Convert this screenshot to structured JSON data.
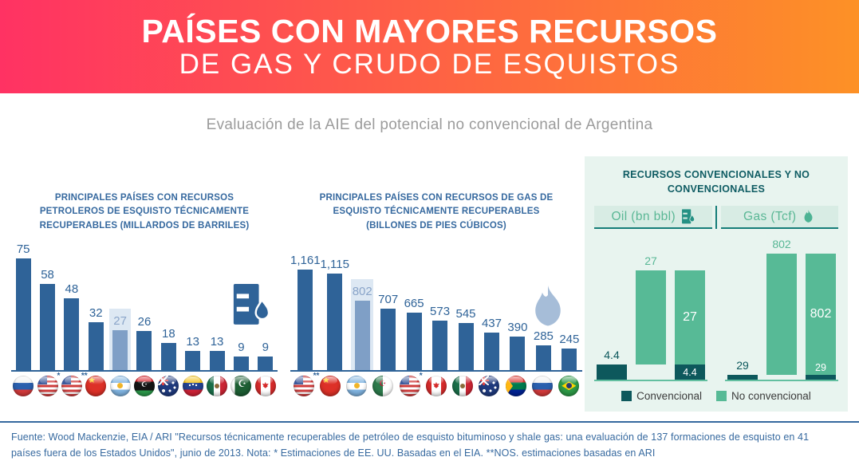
{
  "header": {
    "title_line1": "PAÍSES CON MAYORES RECURSOS",
    "title_line2": "DE GAS Y CRUDO DE ESQUISTOS",
    "subtitle": "Evaluación de la AIE del potencial no convencional de Argentina"
  },
  "colors": {
    "banner_gradient_left": "#ff3263",
    "banner_gradient_right": "#fd9126",
    "bar_blue": "#2f6398",
    "bar_highlight": "#7f9fc6",
    "highlight_band": "#dde8f3",
    "chart_title_blue": "#36699f",
    "panel_background": "#e8f4ef",
    "teal_conventional": "#0d585c",
    "green_unconventional": "#57ba96"
  },
  "chart_data": [
    {
      "id": "oil-countries",
      "type": "bar",
      "title": "PRINCIPALES PAÍSES CON RECURSOS PETROLEROS DE ESQUISTO TÉCNICAMENTE RECUPERABLES (MILLARDOS DE BARRILES)",
      "unit": "millardos de barriles",
      "icon": "oil-barrel-icon",
      "bars": [
        {
          "country": "Rusia",
          "flag": "ru",
          "value": 75
        },
        {
          "country": "Estados Unidos",
          "flag": "us",
          "note": "*",
          "value": 58
        },
        {
          "country": "Estados Unidos",
          "flag": "us",
          "note": "**",
          "value": 48
        },
        {
          "country": "China",
          "flag": "cn",
          "value": 32
        },
        {
          "country": "Argentina",
          "flag": "ar",
          "value": 27,
          "highlight": true
        },
        {
          "country": "Libia",
          "flag": "ly",
          "value": 26
        },
        {
          "country": "Australia",
          "flag": "au",
          "value": 18
        },
        {
          "country": "Venezuela",
          "flag": "ve",
          "value": 13
        },
        {
          "country": "México",
          "flag": "mx",
          "value": 13
        },
        {
          "country": "Pakistán",
          "flag": "pk",
          "value": 9
        },
        {
          "country": "Canadá",
          "flag": "ca",
          "value": 9
        }
      ]
    },
    {
      "id": "gas-countries",
      "type": "bar",
      "title": "PRINCIPALES PAÍSES CON RECURSOS DE GAS DE ESQUISTO TÉCNICAMENTE RECUPERABLES (BILLONES DE PIES CÚBICOS)",
      "unit": "billones de pies cúbicos",
      "icon": "flame-icon",
      "bars": [
        {
          "country": "Estados Unidos",
          "flag": "us",
          "note": "**",
          "value": 1161,
          "label": "1,161"
        },
        {
          "country": "China",
          "flag": "cn",
          "value": 1115,
          "label": "1,115"
        },
        {
          "country": "Argentina",
          "flag": "ar",
          "value": 802,
          "highlight": true
        },
        {
          "country": "Argelia",
          "flag": "dz",
          "value": 707
        },
        {
          "country": "Estados Unidos",
          "flag": "us",
          "note": "*",
          "value": 665
        },
        {
          "country": "Canadá",
          "flag": "ca",
          "value": 573
        },
        {
          "country": "México",
          "flag": "mx",
          "value": 545
        },
        {
          "country": "Australia",
          "flag": "au",
          "value": 437
        },
        {
          "country": "Sudáfrica",
          "flag": "za",
          "value": 390
        },
        {
          "country": "Rusia",
          "flag": "ru",
          "value": 285
        },
        {
          "country": "Brasil",
          "flag": "br",
          "value": 245
        }
      ]
    },
    {
      "id": "conventional-vs-unconventional",
      "type": "grouped-stacked-bar",
      "title": "RECURSOS CONVENCIONALES Y NO CONVENCIONALES",
      "groups": [
        {
          "label": "Oil (bn bbl)",
          "icon": "oil-barrel-icon",
          "conventional": 4.4,
          "unconventional": 27,
          "conventional_label": "4.4",
          "unconventional_label": "27"
        },
        {
          "label": "Gas (Tcf)",
          "icon": "flame-icon",
          "conventional": 29,
          "unconventional": 802,
          "conventional_label": "29",
          "unconventional_label": "802"
        }
      ],
      "legend": [
        {
          "label": "Convencional",
          "color": "#0d585c"
        },
        {
          "label": "No convencional",
          "color": "#57ba96"
        }
      ]
    }
  ],
  "footer": {
    "text": "Fuente: Wood Mackenzie, EIA / ARI \"Recursos técnicamente recuperables de petróleo de esquisto bituminoso y shale gas: una evaluación de 137 formaciones de esquisto en 41 países fuera de los Estados Unidos\", junio de 2013. Nota: * Estimaciones de EE. UU. Basadas en el EIA. **NOS. estimaciones basadas en ARI"
  }
}
